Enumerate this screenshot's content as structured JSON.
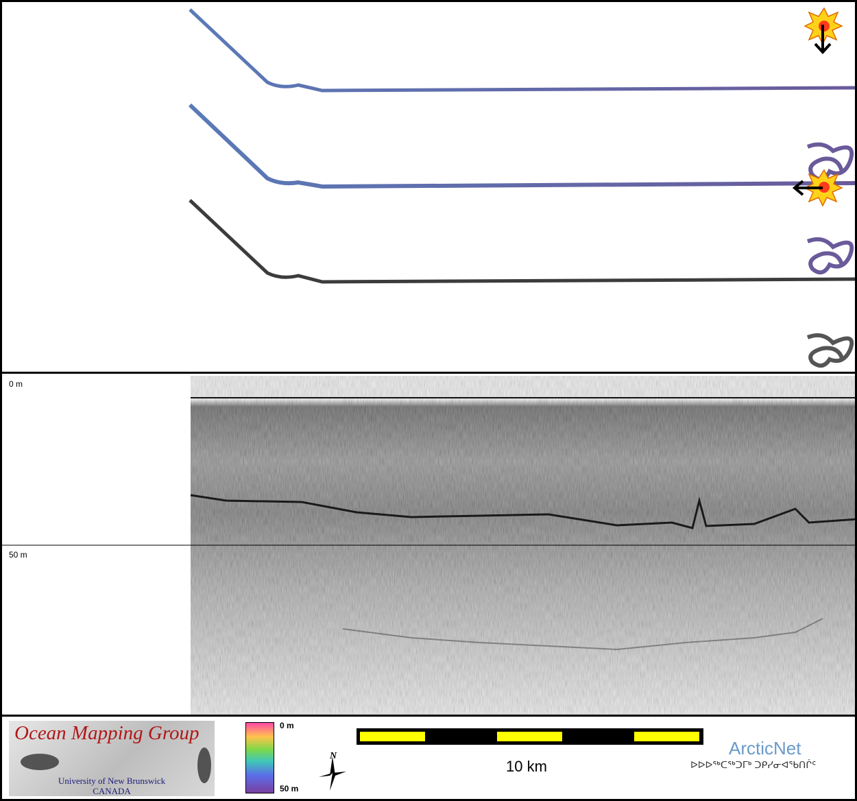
{
  "profile": {
    "depth_top": "0 m",
    "depth_mid": "50 m"
  },
  "legend": {
    "colorbar_top": "0 m",
    "colorbar_bottom": "50 m",
    "north": "N",
    "scale": "10 km"
  },
  "logos": {
    "omg_title": "Ocean Mapping Group",
    "omg_line1": "University of New Brunswick",
    "omg_line2": "CANADA",
    "arcticnet": "ArcticNet",
    "arcticnet_inuktitut": "ᐅᐅᐅᖅᑕᖅᑐᒥᒃ ᑐᑭᓯᓂᐊᖃᑎᒌᑦ"
  },
  "colors": {
    "track_color": "#5a6eb0",
    "track_purple": "#6a5a9a",
    "track_gray": "#3c3c3c",
    "scalebar_fill": "#ffff00",
    "omg_red": "#b01818",
    "arcticnet_blue": "#6a9acb"
  }
}
